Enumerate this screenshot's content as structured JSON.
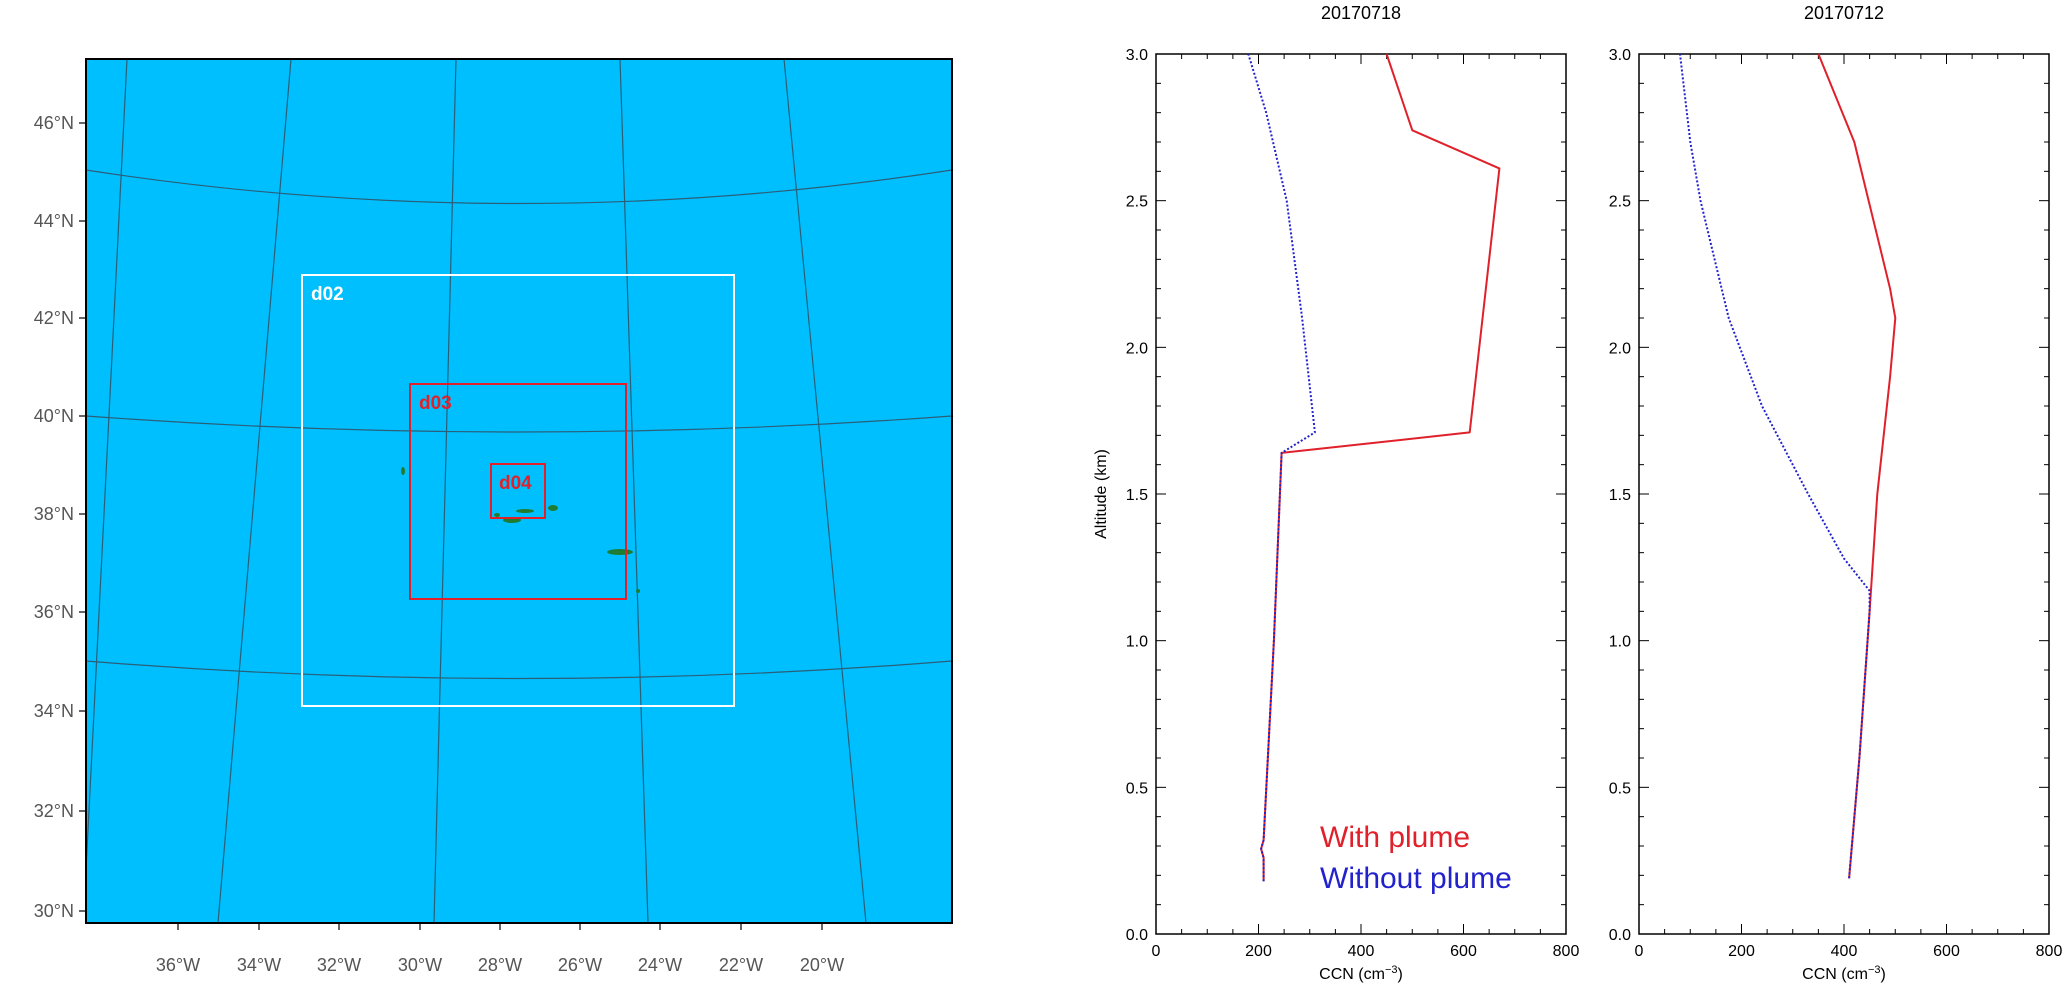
{
  "map": {
    "lat_labels": [
      "46°N",
      "44°N",
      "42°N",
      "40°N",
      "38°N",
      "36°N",
      "34°N",
      "32°N",
      "30°N"
    ],
    "lon_labels": [
      "36°W",
      "34°W",
      "32°W",
      "30°W",
      "28°W",
      "26°W",
      "24°W",
      "22°W",
      "20°W"
    ],
    "ocean_color": "#00bfff",
    "land_color": "#1e7d32",
    "domains": [
      {
        "label": "d02",
        "color": "#ffffff"
      },
      {
        "label": "d03",
        "color": "#e0202a"
      },
      {
        "label": "d04",
        "color": "#e0202a"
      }
    ]
  },
  "chart_data": [
    {
      "type": "line",
      "title": "20170718",
      "xlabel": "CCN (cm",
      "xlabel_sup": "−3",
      "xlabel_close": ")",
      "ylabel": "Altitude (km)",
      "xlim": [
        0,
        800
      ],
      "ylim": [
        0,
        3.0
      ],
      "xticks": [
        0,
        200,
        400,
        600,
        800
      ],
      "yticks": [
        "0.0",
        "0.5",
        "1.0",
        "1.5",
        "2.0",
        "2.5",
        "3.0"
      ],
      "legend": {
        "placement": "bottom-right"
      },
      "series": [
        {
          "name": "With plume",
          "color": "#e0202a",
          "style": "solid",
          "points": [
            [
              210,
              0.18
            ],
            [
              210,
              0.26
            ],
            [
              205,
              0.29
            ],
            [
              210,
              0.32
            ],
            [
              230,
              1.0
            ],
            [
              245,
              1.64
            ],
            [
              612,
              1.71
            ],
            [
              670,
              2.61
            ],
            [
              500,
              2.74
            ],
            [
              450,
              3.0
            ]
          ]
        },
        {
          "name": "Without plume",
          "color": "#2222cc",
          "style": "dotted",
          "points": [
            [
              210,
              0.18
            ],
            [
              210,
              0.26
            ],
            [
              205,
              0.29
            ],
            [
              210,
              0.32
            ],
            [
              230,
              1.0
            ],
            [
              245,
              1.64
            ],
            [
              310,
              1.71
            ],
            [
              285,
              2.1
            ],
            [
              255,
              2.5
            ],
            [
              215,
              2.8
            ],
            [
              180,
              3.0
            ]
          ]
        }
      ]
    },
    {
      "type": "line",
      "title": "20170712",
      "xlabel": "CCN (cm",
      "xlabel_sup": "−3",
      "xlabel_close": ")",
      "ylabel": "",
      "xlim": [
        0,
        800
      ],
      "ylim": [
        0,
        3.0
      ],
      "xticks": [
        0,
        200,
        400,
        600,
        800
      ],
      "yticks": [
        "0.0",
        "0.5",
        "1.0",
        "1.5",
        "2.0",
        "2.5",
        "3.0"
      ],
      "series": [
        {
          "color": "#e0202a",
          "style": "solid",
          "points": [
            [
              410,
              0.19
            ],
            [
              430,
              0.6
            ],
            [
              450,
              1.1
            ],
            [
              465,
              1.5
            ],
            [
              490,
              1.9
            ],
            [
              500,
              2.1
            ],
            [
              490,
              2.2
            ],
            [
              420,
              2.7
            ],
            [
              350,
              3.0
            ]
          ]
        },
        {
          "color": "#2222cc",
          "style": "dotted",
          "points": [
            [
              410,
              0.19
            ],
            [
              430,
              0.6
            ],
            [
              450,
              1.1
            ],
            [
              450,
              1.17
            ],
            [
              400,
              1.28
            ],
            [
              330,
              1.5
            ],
            [
              240,
              1.8
            ],
            [
              175,
              2.1
            ],
            [
              120,
              2.5
            ],
            [
              100,
              2.7
            ],
            [
              80,
              3.0
            ]
          ]
        }
      ]
    }
  ]
}
